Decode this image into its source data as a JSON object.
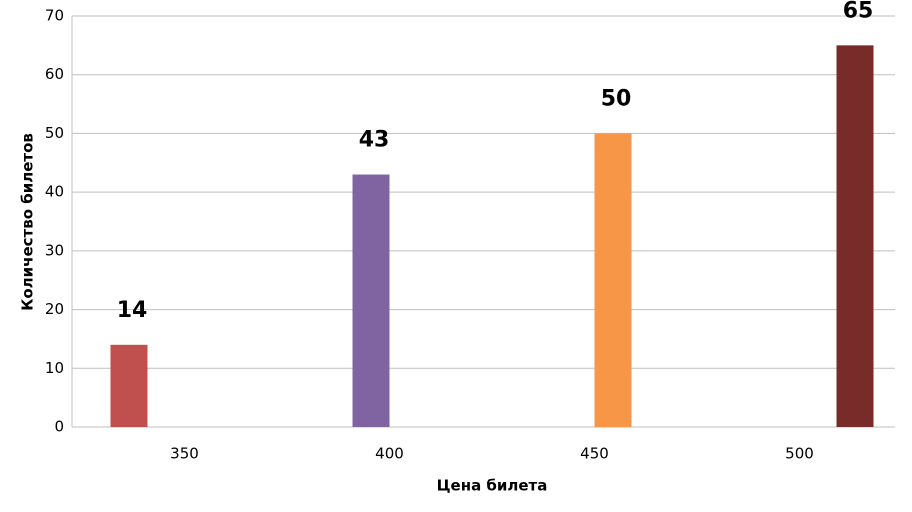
{
  "chart_data": {
    "type": "bar",
    "categories": [
      "350",
      "400",
      "450",
      "500"
    ],
    "values": [
      14,
      43,
      50,
      65
    ],
    "colors": [
      "#c0504d",
      "#8064a2",
      "#f79646",
      "#772c2a"
    ],
    "x_label": "Цена билета",
    "y_label": "Количество билетов",
    "ylim": [
      0,
      70
    ],
    "yticks": [
      0,
      10,
      20,
      30,
      40,
      50,
      60,
      70
    ],
    "grid": true
  }
}
